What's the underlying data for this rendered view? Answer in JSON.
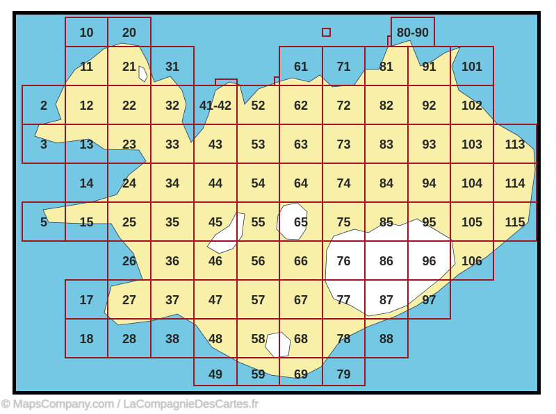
{
  "map": {
    "colors": {
      "sea": "#74c8e4",
      "land": "#f8f0a8",
      "glacier": "#ffffff",
      "grid": "#a01424",
      "frame": "#000000",
      "label": "#262626"
    },
    "sheet_rows": [
      [
        "10",
        "20",
        "80-90"
      ],
      [
        "11",
        "21",
        "31",
        "61",
        "71",
        "81",
        "91",
        "101"
      ],
      [
        "2",
        "12",
        "22",
        "32",
        "41-42",
        "52",
        "62",
        "72",
        "82",
        "92",
        "102"
      ],
      [
        "3",
        "13",
        "23",
        "33",
        "43",
        "53",
        "63",
        "73",
        "83",
        "93",
        "103",
        "113"
      ],
      [
        "14",
        "24",
        "34",
        "44",
        "54",
        "64",
        "74",
        "84",
        "94",
        "104",
        "114"
      ],
      [
        "5",
        "15",
        "25",
        "35",
        "45",
        "55",
        "65",
        "75",
        "85",
        "95",
        "105",
        "115"
      ],
      [
        "26",
        "36",
        "46",
        "56",
        "66",
        "76",
        "86",
        "96",
        "106"
      ],
      [
        "17",
        "27",
        "37",
        "47",
        "57",
        "67",
        "77",
        "87",
        "97"
      ],
      [
        "18",
        "28",
        "38",
        "48",
        "58",
        "68",
        "78",
        "88"
      ],
      [
        "49",
        "59",
        "69",
        "79"
      ]
    ]
  },
  "copyright": "© MapsCompany.com / LaCompagnieDesCartes.fr"
}
